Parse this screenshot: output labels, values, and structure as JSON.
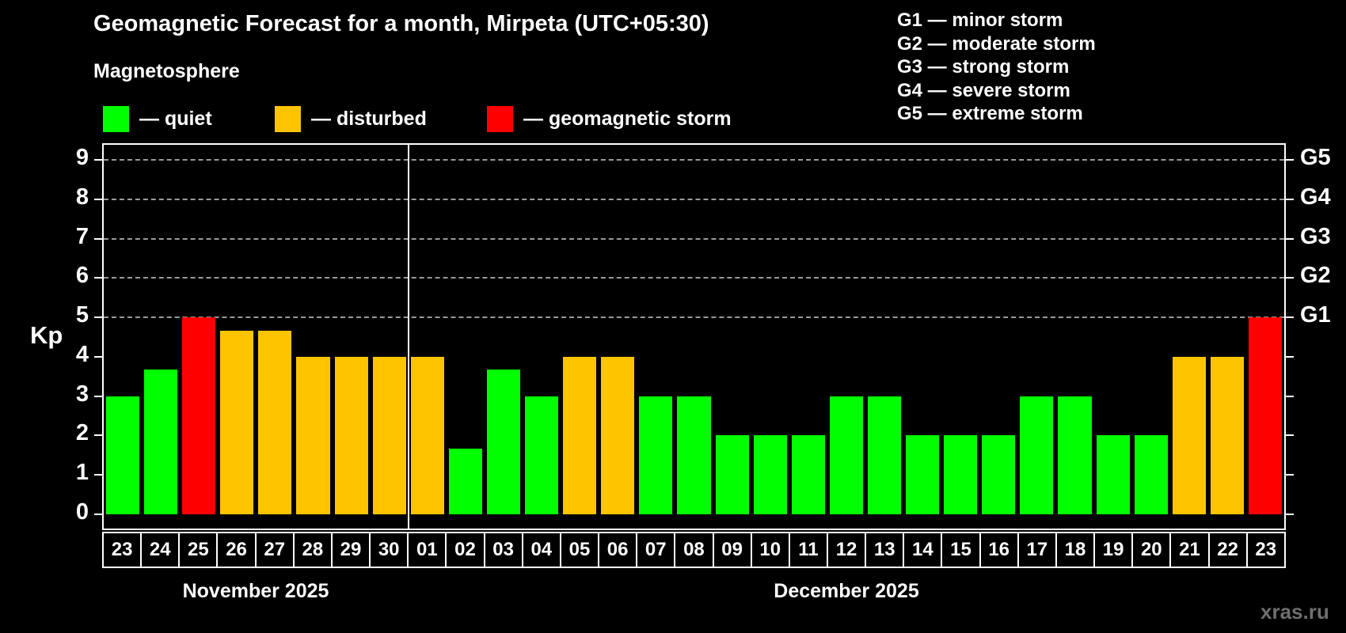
{
  "header": {
    "title": "Geomagnetic Forecast for a month, Mirpeta (UTC+05:30)",
    "subtitle": "Magnetosphere"
  },
  "legend": {
    "items": [
      {
        "key": "quiet",
        "label": "— quiet",
        "color": "#00ff00"
      },
      {
        "key": "disturbed",
        "label": "— disturbed",
        "color": "#ffc400"
      },
      {
        "key": "storm",
        "label": "— geomagnetic storm",
        "color": "#ff0000"
      }
    ]
  },
  "g_scale_legend": {
    "items": [
      "G1 — minor storm",
      "G2 — moderate storm",
      "G3 — strong storm",
      "G4 — severe storm",
      "G5 — extreme storm"
    ]
  },
  "chart_data": {
    "type": "bar",
    "title": "Geomagnetic Forecast for a month, Mirpeta (UTC+05:30)",
    "ylabel": "Kp",
    "ylim": [
      0,
      9
    ],
    "yticks": [
      0,
      1,
      2,
      3,
      4,
      5,
      6,
      7,
      8,
      9
    ],
    "gridlines_at": [
      5,
      6,
      7,
      8,
      9
    ],
    "grid": "dashed horizontal at storm levels only",
    "legend_position": "top",
    "colors": {
      "quiet": "#00ff00",
      "disturbed": "#ffc400",
      "storm": "#ff0000"
    },
    "g_labels": [
      {
        "kp": 5,
        "label": "G1"
      },
      {
        "kp": 6,
        "label": "G2"
      },
      {
        "kp": 7,
        "label": "G3"
      },
      {
        "kp": 8,
        "label": "G4"
      },
      {
        "kp": 9,
        "label": "G5"
      }
    ],
    "month_separator_index": 8,
    "months": [
      {
        "label": "November 2025",
        "from_index": 0,
        "to_index": 7
      },
      {
        "label": "December 2025",
        "from_index": 8,
        "to_index": 30
      }
    ],
    "bars": [
      {
        "date": "23",
        "month": "November 2025",
        "kp": 3.0,
        "status": "quiet"
      },
      {
        "date": "24",
        "month": "November 2025",
        "kp": 3.67,
        "status": "quiet"
      },
      {
        "date": "25",
        "month": "November 2025",
        "kp": 5.0,
        "status": "storm"
      },
      {
        "date": "26",
        "month": "November 2025",
        "kp": 4.67,
        "status": "disturbed"
      },
      {
        "date": "27",
        "month": "November 2025",
        "kp": 4.67,
        "status": "disturbed"
      },
      {
        "date": "28",
        "month": "November 2025",
        "kp": 4.0,
        "status": "disturbed"
      },
      {
        "date": "29",
        "month": "November 2025",
        "kp": 4.0,
        "status": "disturbed"
      },
      {
        "date": "30",
        "month": "November 2025",
        "kp": 4.0,
        "status": "disturbed"
      },
      {
        "date": "01",
        "month": "December 2025",
        "kp": 4.0,
        "status": "disturbed"
      },
      {
        "date": "02",
        "month": "December 2025",
        "kp": 1.67,
        "status": "quiet"
      },
      {
        "date": "03",
        "month": "December 2025",
        "kp": 3.67,
        "status": "quiet"
      },
      {
        "date": "04",
        "month": "December 2025",
        "kp": 3.0,
        "status": "quiet"
      },
      {
        "date": "05",
        "month": "December 2025",
        "kp": 4.0,
        "status": "disturbed"
      },
      {
        "date": "06",
        "month": "December 2025",
        "kp": 4.0,
        "status": "disturbed"
      },
      {
        "date": "07",
        "month": "December 2025",
        "kp": 3.0,
        "status": "quiet"
      },
      {
        "date": "08",
        "month": "December 2025",
        "kp": 3.0,
        "status": "quiet"
      },
      {
        "date": "09",
        "month": "December 2025",
        "kp": 2.0,
        "status": "quiet"
      },
      {
        "date": "10",
        "month": "December 2025",
        "kp": 2.0,
        "status": "quiet"
      },
      {
        "date": "11",
        "month": "December 2025",
        "kp": 2.0,
        "status": "quiet"
      },
      {
        "date": "12",
        "month": "December 2025",
        "kp": 3.0,
        "status": "quiet"
      },
      {
        "date": "13",
        "month": "December 2025",
        "kp": 3.0,
        "status": "quiet"
      },
      {
        "date": "14",
        "month": "December 2025",
        "kp": 2.0,
        "status": "quiet"
      },
      {
        "date": "15",
        "month": "December 2025",
        "kp": 2.0,
        "status": "quiet"
      },
      {
        "date": "16",
        "month": "December 2025",
        "kp": 2.0,
        "status": "quiet"
      },
      {
        "date": "17",
        "month": "December 2025",
        "kp": 3.0,
        "status": "quiet"
      },
      {
        "date": "18",
        "month": "December 2025",
        "kp": 3.0,
        "status": "quiet"
      },
      {
        "date": "19",
        "month": "December 2025",
        "kp": 2.0,
        "status": "quiet"
      },
      {
        "date": "20",
        "month": "December 2025",
        "kp": 2.0,
        "status": "quiet"
      },
      {
        "date": "21",
        "month": "December 2025",
        "kp": 4.0,
        "status": "disturbed"
      },
      {
        "date": "22",
        "month": "December 2025",
        "kp": 4.0,
        "status": "disturbed"
      },
      {
        "date": "23",
        "month": "December 2025",
        "kp": 5.0,
        "status": "storm"
      }
    ]
  },
  "watermark": "xras.ru"
}
